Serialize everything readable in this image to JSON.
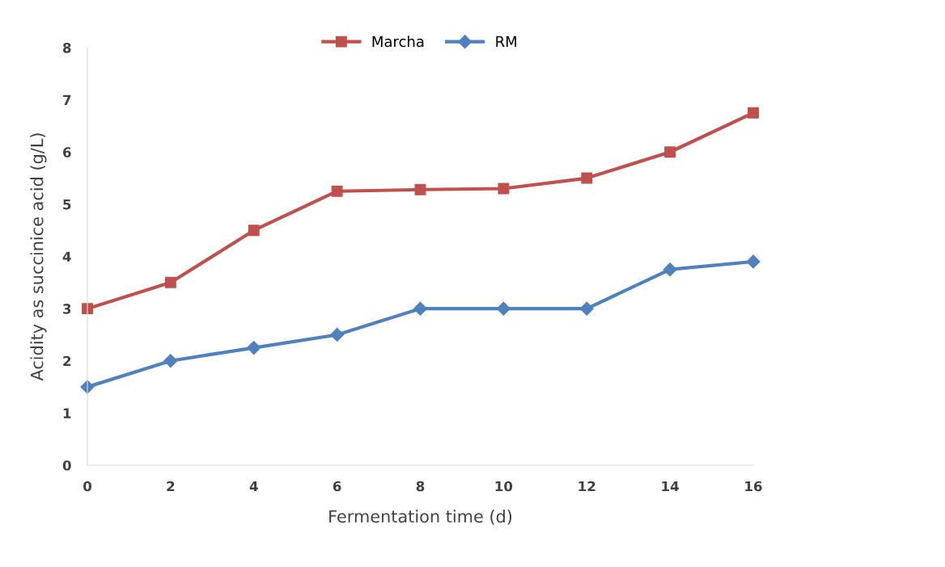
{
  "chart_data": {
    "type": "line",
    "xlabel": "Fermentation time (d)",
    "ylabel": "Acidity as succinice acid (g/L)",
    "x": [
      0,
      2,
      4,
      6,
      8,
      10,
      12,
      14,
      16
    ],
    "series": [
      {
        "name": "Marcha",
        "color": "#c0504d",
        "marker": "square",
        "values": [
          3,
          3.5,
          4.5,
          5.25,
          5.28,
          5.3,
          5.5,
          6,
          6.75
        ]
      },
      {
        "name": "RM",
        "color": "#4f81bd",
        "marker": "diamond",
        "values": [
          1.5,
          2,
          2.25,
          2.5,
          3,
          3,
          3,
          3.75,
          3.9
        ]
      }
    ],
    "xlim": [
      0,
      16
    ],
    "xticks": [
      0,
      2,
      4,
      6,
      8,
      10,
      12,
      14,
      16
    ],
    "ylim": [
      0,
      8
    ],
    "yticks": [
      0,
      1,
      2,
      3,
      4,
      5,
      6,
      7,
      8
    ],
    "grid": false,
    "legend": "top",
    "line_style": "solid"
  }
}
